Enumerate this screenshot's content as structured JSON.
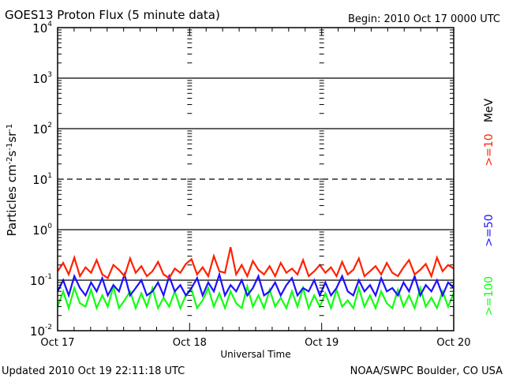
{
  "header": {
    "title": "GOES13 Proton Flux (5 minute data)",
    "begin": "Begin: 2010 Oct 17 0000 UTC"
  },
  "footer": {
    "updated": "Updated 2010 Oct 19 22:11:18 UTC",
    "source": "NOAA/SWPC Boulder, CO USA"
  },
  "colors": {
    "ge10": "#ff2000",
    "ge50": "#1e10ff",
    "ge100": "#10ff10"
  },
  "chart_data": {
    "type": "line",
    "title": "GOES13 Proton Flux (5 minute data)",
    "xlabel": "Universal Time",
    "ylabel": "Particles cm-2 s-1 sr-1",
    "yscale": "log",
    "ylim": [
      0.01,
      10000
    ],
    "xlim_hours": [
      0,
      72
    ],
    "x_tick_labels": [
      "Oct 17",
      "Oct 18",
      "Oct 19",
      "Oct 20"
    ],
    "y_tick_labels": [
      {
        "base": "10",
        "exp": "-2"
      },
      {
        "base": "10",
        "exp": "-1"
      },
      {
        "base": "10",
        "exp": "0"
      },
      {
        "base": "10",
        "exp": "1"
      },
      {
        "base": "10",
        "exp": "2"
      },
      {
        "base": "10",
        "exp": "3"
      },
      {
        "base": "10",
        "exp": "4"
      }
    ],
    "legend_unit": "MeV",
    "series": [
      {
        "name": ">=10",
        "color": "#ff2000",
        "values": [
          0.15,
          0.22,
          0.13,
          0.28,
          0.12,
          0.18,
          0.14,
          0.25,
          0.13,
          0.11,
          0.2,
          0.16,
          0.12,
          0.27,
          0.14,
          0.19,
          0.12,
          0.15,
          0.23,
          0.13,
          0.11,
          0.17,
          0.14,
          0.21,
          0.26,
          0.13,
          0.18,
          0.12,
          0.3,
          0.15,
          0.14,
          0.45,
          0.13,
          0.2,
          0.12,
          0.24,
          0.16,
          0.13,
          0.19,
          0.12,
          0.22,
          0.14,
          0.17,
          0.13,
          0.25,
          0.12,
          0.15,
          0.2,
          0.14,
          0.18,
          0.12,
          0.23,
          0.13,
          0.16,
          0.27,
          0.12,
          0.15,
          0.19,
          0.13,
          0.22,
          0.14,
          0.12,
          0.18,
          0.25,
          0.13,
          0.16,
          0.21,
          0.12,
          0.28,
          0.15,
          0.2,
          0.17
        ]
      },
      {
        "name": ">=50",
        "color": "#1e10ff",
        "values": [
          0.06,
          0.1,
          0.05,
          0.12,
          0.07,
          0.05,
          0.09,
          0.06,
          0.11,
          0.05,
          0.08,
          0.06,
          0.13,
          0.05,
          0.07,
          0.1,
          0.05,
          0.06,
          0.09,
          0.05,
          0.12,
          0.06,
          0.08,
          0.05,
          0.07,
          0.11,
          0.05,
          0.09,
          0.06,
          0.13,
          0.05,
          0.08,
          0.06,
          0.1,
          0.05,
          0.07,
          0.12,
          0.05,
          0.06,
          0.09,
          0.05,
          0.08,
          0.11,
          0.05,
          0.07,
          0.06,
          0.1,
          0.05,
          0.09,
          0.05,
          0.07,
          0.12,
          0.06,
          0.05,
          0.1,
          0.06,
          0.08,
          0.05,
          0.11,
          0.06,
          0.07,
          0.05,
          0.09,
          0.06,
          0.12,
          0.05,
          0.08,
          0.06,
          0.1,
          0.05,
          0.09,
          0.07
        ]
      },
      {
        "name": ">=100",
        "color": "#10ff10",
        "values": [
          0.03,
          0.06,
          0.028,
          0.07,
          0.035,
          0.03,
          0.065,
          0.028,
          0.05,
          0.03,
          0.075,
          0.028,
          0.04,
          0.06,
          0.028,
          0.055,
          0.03,
          0.07,
          0.028,
          0.045,
          0.03,
          0.06,
          0.028,
          0.05,
          0.065,
          0.028,
          0.04,
          0.07,
          0.03,
          0.055,
          0.028,
          0.06,
          0.035,
          0.028,
          0.075,
          0.03,
          0.05,
          0.028,
          0.065,
          0.03,
          0.045,
          0.028,
          0.06,
          0.03,
          0.07,
          0.028,
          0.05,
          0.03,
          0.055,
          0.028,
          0.065,
          0.03,
          0.04,
          0.028,
          0.07,
          0.03,
          0.05,
          0.028,
          0.06,
          0.035,
          0.028,
          0.065,
          0.03,
          0.05,
          0.028,
          0.07,
          0.03,
          0.045,
          0.028,
          0.06,
          0.03,
          0.055
        ]
      }
    ]
  }
}
